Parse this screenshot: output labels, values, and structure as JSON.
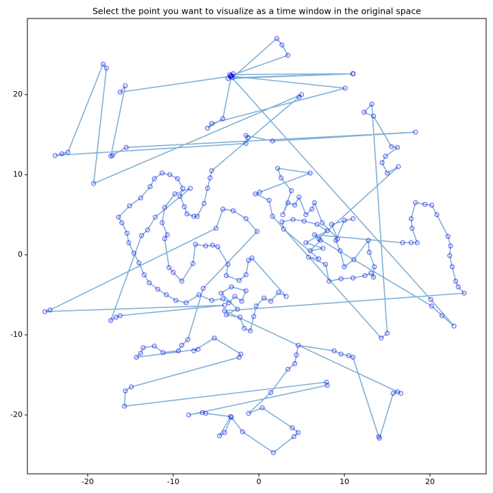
{
  "chart_data": {
    "type": "line",
    "title": "Select the point you want to visualize as a time window in the original space",
    "line_color": "#7fb0d6",
    "marker_color": "#0000ee",
    "markers": true,
    "xlim": [
      -27.04,
      26.56
    ],
    "ylim": [
      -27.35,
      29.5
    ],
    "xticks": [
      -20,
      -10,
      0,
      10,
      20
    ],
    "yticks": [
      -20,
      -10,
      0,
      10,
      20
    ],
    "x": [
      -3.3,
      -3.0,
      -3.6,
      11,
      -3.4,
      11,
      -3.1,
      2.1,
      2.7,
      3.4,
      -3.2,
      -4.2,
      -6,
      -5.5,
      10.1,
      -3.2,
      -16.2,
      -15.6,
      -17.3,
      -17.1,
      -15.5,
      18.3,
      1.6,
      -1.5,
      -1.3,
      -1.5,
      -23.8,
      -23,
      -22.3,
      -18.2,
      -17.8,
      -19.3,
      5,
      4.7,
      -5.5,
      -5.7,
      -6,
      -6.4,
      -7.2,
      -7.6,
      -8.4,
      -8.7,
      -9.2,
      -8.9,
      -9.5,
      -10.4,
      -11.3,
      -12.2,
      -12.7,
      -13.8,
      -15.1,
      -16.4,
      -16,
      -15.4,
      -15.2,
      -14.6,
      -14,
      -13.4,
      -12.8,
      -11.8,
      -10.8,
      -9.7,
      -8.5,
      -7,
      -5.5,
      -4.2,
      -3.5,
      -2.8,
      -2,
      -1.5,
      -3.2,
      -4.4,
      -2.5,
      -3.8,
      -2.2,
      -1.7,
      -1,
      -0.6,
      -0.3,
      0.6,
      1.4,
      2.3,
      3.2,
      -0.8,
      -1.2,
      -1.5,
      -2.3,
      -3.8,
      -3.6,
      -4.8,
      -5.4,
      -6.2,
      -7.4,
      -7.7,
      -9,
      -10,
      -10.5,
      -11,
      -10.7,
      -11.3,
      -11,
      -9.8,
      -8,
      -12.1,
      -13,
      -13.7,
      -17.3,
      -16.7,
      -16.2,
      -4,
      -25,
      -24.4,
      -5,
      -4.2,
      -3,
      -1.5,
      -0.2,
      -6.5,
      -8.3,
      -9,
      -9.4,
      -11.2,
      -12.2,
      -13.5,
      -13.8,
      -14.3,
      -7.1,
      -7.6,
      -5.2,
      -2.1,
      -2.3,
      -14.9,
      -15.6,
      -15.7,
      7.9,
      8,
      -8.2,
      -6.6,
      -6.2,
      -3.3,
      -4.6,
      -4,
      -3.2,
      -1.9,
      1.7,
      4.1,
      4.6,
      3.9,
      0.4,
      -1.2,
      1.4,
      3.4,
      4.2,
      4.4,
      4.6,
      8.8,
      9.6,
      10.5,
      11,
      14,
      14.1,
      15.7,
      16.2,
      16.6,
      -4,
      24,
      23.3,
      23,
      22.6,
      22.3,
      22.4,
      22.1,
      20.8,
      20.2,
      19.4,
      18.3,
      17.8,
      17.9,
      18.5,
      17.8,
      16.8,
      6.5,
      7.2,
      6,
      7.5,
      5.5,
      8,
      6.8,
      5.3,
      4,
      2.7,
      2.9,
      7,
      5.8,
      7.8,
      8.2,
      9.6,
      11,
      12.4,
      13.1,
      13.4,
      13.5,
      12.9,
      12.8,
      11.1,
      10,
      9.5,
      9,
      10,
      11,
      8.5,
      9.2,
      7.4,
      6.5,
      6.2,
      5.5,
      4.7,
      4.2,
      3.4,
      2.8,
      3.8,
      2.6,
      2.2,
      6,
      0.1,
      -0.4,
      1.2,
      1.6,
      14.3,
      15,
      13.2,
      12.3,
      13.4,
      15.5,
      16.2,
      14.8,
      14.4,
      15,
      16.3,
      7,
      20.2,
      21.4,
      22.8,
      20.1,
      -3.3
    ],
    "values": [
      22.3,
      22.6,
      22.0,
      22.6,
      22.5,
      22.6,
      22.1,
      27,
      26.2,
      24.9,
      22.4,
      17,
      15.8,
      16.4,
      20.8,
      22.3,
      20.3,
      21.1,
      12.3,
      12.4,
      13.4,
      15.3,
      14.2,
      14.9,
      14.6,
      13.9,
      12.4,
      12.6,
      12.8,
      23.8,
      23.3,
      8.9,
      20,
      19.7,
      10.5,
      9.6,
      8.3,
      6.4,
      4.8,
      4.8,
      5.1,
      6,
      7.3,
      8.3,
      9.5,
      10,
      10.2,
      9.5,
      8.5,
      7.1,
      6.1,
      4.7,
      4,
      2.7,
      1.5,
      0.2,
      -1,
      -2.5,
      -3.5,
      -4.3,
      -5,
      -5.7,
      -6,
      -5,
      -5.7,
      -5.5,
      -6,
      -5.2,
      -5.8,
      -4.5,
      -4,
      -4.8,
      -6.8,
      -7.5,
      -7.8,
      -9.2,
      -9.5,
      -7.7,
      -6.4,
      -5.4,
      -5.8,
      -4.7,
      -5.2,
      -0.4,
      -0.7,
      -2.5,
      -3.2,
      -2.6,
      -1.2,
      1,
      1.2,
      1.1,
      1.3,
      -1.1,
      -3.3,
      -2.2,
      -1.6,
      2,
      2.5,
      4,
      5.9,
      7.6,
      8.3,
      4.7,
      3.1,
      2.4,
      -8.2,
      -7.8,
      -7.6,
      -6.3,
      -7.1,
      -6.9,
      3.3,
      5.7,
      5.5,
      4.5,
      2.9,
      -4.2,
      -10.6,
      -11.3,
      -12,
      -12.2,
      -11.4,
      -11.6,
      -12.3,
      -12.8,
      -11.8,
      -12,
      -10.4,
      -12.4,
      -12.8,
      -16.5,
      -17,
      -18.9,
      -15.9,
      -16.3,
      -20,
      -19.7,
      -19.8,
      -20.2,
      -22.6,
      -22.2,
      -20.3,
      -22.1,
      -24.7,
      -22.7,
      -22.2,
      -21.6,
      -19.1,
      -19.8,
      -17.2,
      -14.3,
      -13.6,
      -12.5,
      -11.3,
      -12,
      -12.4,
      -12.6,
      -12.8,
      -22.7,
      -22.9,
      -17.3,
      -17.1,
      -17.3,
      -7,
      -4.8,
      -4,
      -3.3,
      -1.5,
      -0.1,
      1.1,
      2.3,
      5,
      6.2,
      6.3,
      6.5,
      4.5,
      3.3,
      1.5,
      1.5,
      1.5,
      2.5,
      1.8,
      0.5,
      0.8,
      1.5,
      3,
      3.8,
      4.2,
      4.4,
      4.1,
      3.2,
      -0.5,
      -0.3,
      -1.2,
      -3.3,
      -3,
      -2.9,
      -2.6,
      -2.3,
      -2.8,
      -1.5,
      0.3,
      1.8,
      -0.6,
      -1.5,
      0.5,
      1.8,
      4.3,
      4.5,
      3.8,
      2,
      4,
      6.5,
      5.7,
      5,
      7.2,
      6.2,
      6.5,
      5,
      8,
      9.6,
      10.8,
      10.2,
      7.8,
      7.6,
      6.8,
      4.8,
      -10.4,
      -9.8,
      18.8,
      17.8,
      17.3,
      13.5,
      13.4,
      12.3,
      11.5,
      10.2,
      11,
      2,
      -6.4,
      -7.6,
      -8.9,
      -5.6,
      22.3
    ]
  }
}
